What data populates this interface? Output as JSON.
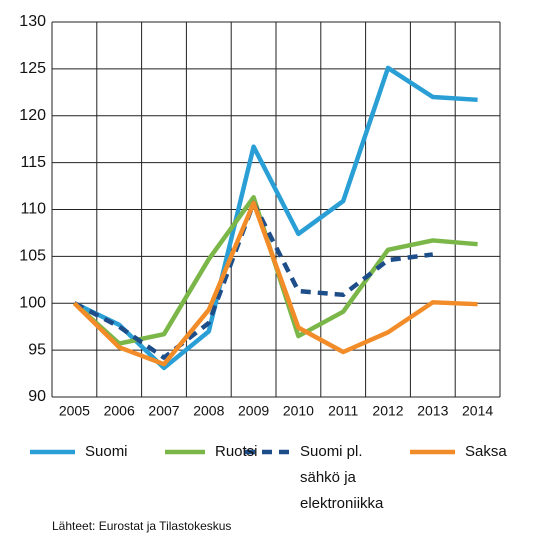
{
  "chart_data": {
    "type": "line",
    "categories": [
      "2005",
      "2006",
      "2007",
      "2008",
      "2009",
      "2010",
      "2011",
      "2012",
      "2013",
      "2014"
    ],
    "series": [
      {
        "name": "Suomi",
        "color": "#2a9fd6",
        "dashed": false,
        "values": [
          100,
          97.7,
          93.1,
          97,
          116.7,
          107.4,
          110.9,
          125.1,
          122,
          121.7
        ]
      },
      {
        "name": "Ruotsi",
        "color": "#7ab648",
        "dashed": false,
        "values": [
          100,
          95.7,
          96.7,
          104.7,
          111.3,
          96.5,
          99.1,
          105.7,
          106.7,
          106.3
        ]
      },
      {
        "name": "Suomi pl. sähkö ja elektroniikka",
        "color": "#1d4e89",
        "dashed": true,
        "values": [
          100,
          97.5,
          94.2,
          97.9,
          110.7,
          101.3,
          100.9,
          104.6,
          105.2,
          null
        ]
      },
      {
        "name": "Saksa",
        "color": "#f28c28",
        "dashed": false,
        "values": [
          100,
          95.3,
          93.5,
          99.3,
          110.7,
          97.4,
          94.8,
          96.9,
          100.1,
          99.9
        ]
      }
    ],
    "ylim": [
      90,
      130
    ],
    "yticks": [
      90,
      95,
      100,
      105,
      110,
      115,
      120,
      125,
      130
    ],
    "grid": true,
    "source": "Lähteet: Eurostat ja Tilastokeskus"
  }
}
